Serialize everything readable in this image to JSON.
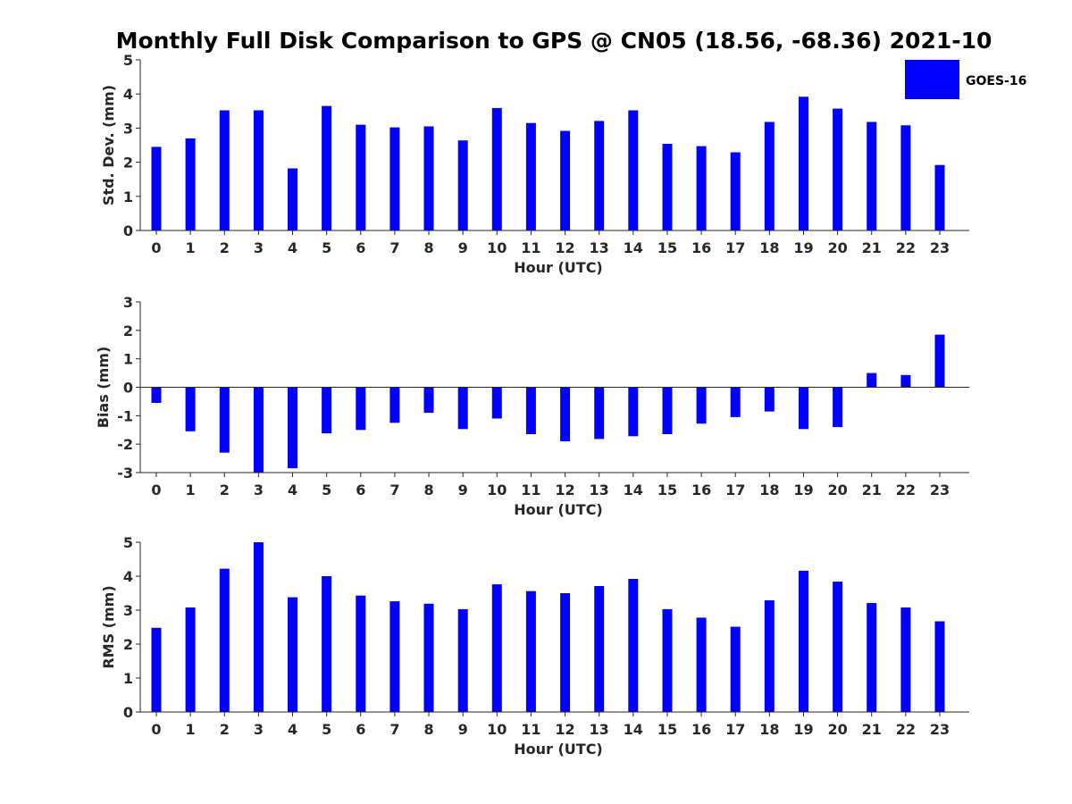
{
  "figure_title": "Monthly Full Disk Comparison to GPS @ CN05 (18.56, -68.36) 2021-10",
  "legend": {
    "label": "GOES-16",
    "color": "#0000ff"
  },
  "bar_color": "#0000ff",
  "chart_data": [
    {
      "type": "bar",
      "id": "std",
      "xlabel": "Hour (UTC)",
      "ylabel": "Std. Dev. (mm)",
      "ylim": [
        0,
        5
      ],
      "yticks": [
        0,
        1,
        2,
        3,
        4,
        5
      ],
      "categories": [
        "0",
        "1",
        "2",
        "3",
        "4",
        "5",
        "6",
        "7",
        "8",
        "9",
        "10",
        "11",
        "12",
        "13",
        "14",
        "15",
        "16",
        "17",
        "18",
        "19",
        "20",
        "21",
        "22",
        "23"
      ],
      "series": [
        {
          "name": "GOES-16",
          "values": [
            2.45,
            2.7,
            3.52,
            3.52,
            1.82,
            3.65,
            3.1,
            3.02,
            3.05,
            2.64,
            3.59,
            3.15,
            2.92,
            3.21,
            3.52,
            2.54,
            2.47,
            2.29,
            3.18,
            3.92,
            3.57,
            3.18,
            3.08,
            1.92
          ]
        }
      ]
    },
    {
      "type": "bar",
      "id": "bias",
      "xlabel": "Hour (UTC)",
      "ylabel": "Bias (mm)",
      "ylim": [
        -3,
        3
      ],
      "yticks": [
        -3,
        -2,
        -1,
        0,
        1,
        2,
        3
      ],
      "categories": [
        "0",
        "1",
        "2",
        "3",
        "4",
        "5",
        "6",
        "7",
        "8",
        "9",
        "10",
        "11",
        "12",
        "13",
        "14",
        "15",
        "16",
        "17",
        "18",
        "19",
        "20",
        "21",
        "22",
        "23"
      ],
      "series": [
        {
          "name": "GOES-16",
          "values": [
            -0.55,
            -1.55,
            -2.3,
            -3.0,
            -2.85,
            -1.62,
            -1.5,
            -1.25,
            -0.9,
            -1.47,
            -1.1,
            -1.65,
            -1.9,
            -1.82,
            -1.72,
            -1.65,
            -1.28,
            -1.05,
            -0.85,
            -1.47,
            -1.4,
            0.5,
            0.43,
            1.85
          ]
        }
      ]
    },
    {
      "type": "bar",
      "id": "rms",
      "xlabel": "Hour (UTC)",
      "ylabel": "RMS (mm)",
      "ylim": [
        0,
        5
      ],
      "yticks": [
        0,
        1,
        2,
        3,
        4,
        5
      ],
      "categories": [
        "0",
        "1",
        "2",
        "3",
        "4",
        "5",
        "6",
        "7",
        "8",
        "9",
        "10",
        "11",
        "12",
        "13",
        "14",
        "15",
        "16",
        "17",
        "18",
        "19",
        "20",
        "21",
        "22",
        "23"
      ],
      "series": [
        {
          "name": "GOES-16",
          "values": [
            2.48,
            3.08,
            4.22,
            5.0,
            3.38,
            4.0,
            3.43,
            3.26,
            3.19,
            3.03,
            3.76,
            3.56,
            3.5,
            3.71,
            3.92,
            3.03,
            2.78,
            2.51,
            3.29,
            4.16,
            3.84,
            3.21,
            3.08,
            2.67
          ]
        }
      ]
    }
  ]
}
